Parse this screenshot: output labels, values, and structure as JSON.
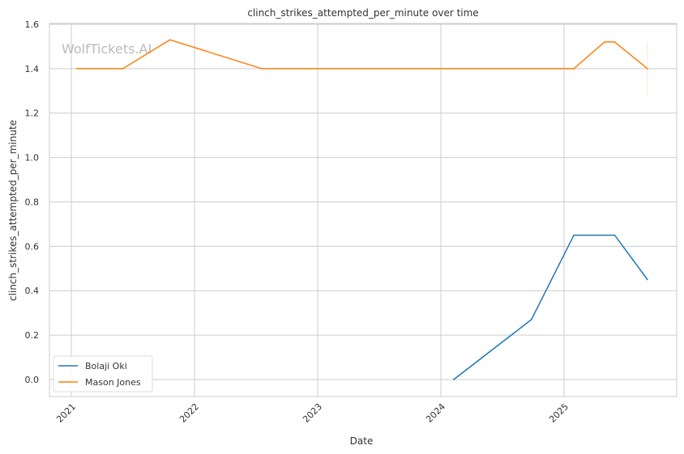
{
  "chart_data": {
    "type": "line",
    "title": "clinch_strikes_attempted_per_minute over time",
    "xlabel": "Date",
    "ylabel": "clinch_strikes_attempted_per_minute",
    "watermark": "WolfTickets.AI",
    "x_ticks": [
      "2021",
      "2022",
      "2023",
      "2024",
      "2025"
    ],
    "y_ticks": [
      "0.0",
      "0.2",
      "0.4",
      "0.6",
      "0.8",
      "1.0",
      "1.2",
      "1.4",
      "1.6"
    ],
    "ylim": [
      -0.08,
      1.6
    ],
    "xlim": [
      "2020-10-20",
      "2025-11-20"
    ],
    "grid": true,
    "legend_position": "bottom-left",
    "series": [
      {
        "name": "Bolaji Oki",
        "color": "#1f77b4",
        "x": [
          "2024-02-08",
          "2024-09-26",
          "2025-01-30",
          "2025-05-31",
          "2025-09-05"
        ],
        "y": [
          0.0,
          0.27,
          0.65,
          0.65,
          0.45
        ]
      },
      {
        "name": "Mason Jones",
        "color": "#ff7f0e",
        "x": [
          "2021-01-17",
          "2021-06-03",
          "2021-10-20",
          "2022-07-19",
          "2025-01-30",
          "2025-05-01",
          "2025-05-31",
          "2025-09-05"
        ],
        "y": [
          1.4,
          1.4,
          1.53,
          1.4,
          1.4,
          1.52,
          1.52,
          1.4
        ],
        "error_band_last": [
          1.28,
          1.52
        ]
      }
    ]
  }
}
